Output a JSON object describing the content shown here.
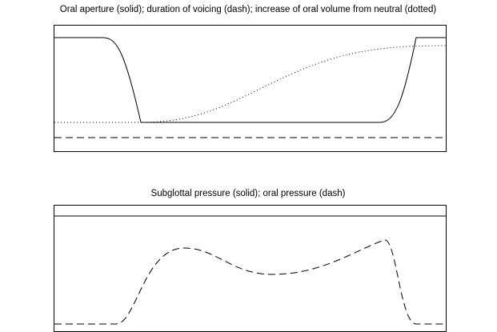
{
  "panels": [
    {
      "title": "Oral aperture (solid); duration of voicing (dash); increase of oral volume from neutral (dotted)"
    },
    {
      "title": "Subglottal pressure (solid); oral pressure (dash)"
    }
  ]
}
